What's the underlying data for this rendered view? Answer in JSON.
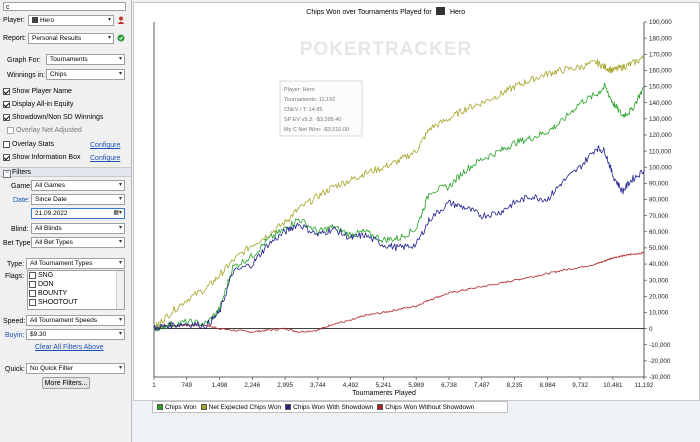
{
  "search": {
    "value": "c"
  },
  "player": {
    "label": "Player:",
    "value": "Hero"
  },
  "report": {
    "label": "Report:",
    "value": "Personal Results"
  },
  "graph_for": {
    "label": "Graph For:",
    "value": "Tournaments"
  },
  "winnings_in": {
    "label": "Winnings in:",
    "value": "Chips"
  },
  "options": [
    {
      "label": "Show Player Name",
      "checked": true
    },
    {
      "label": "Display All-in Equity",
      "checked": true
    },
    {
      "label": "Showdown/Non SD Winnings",
      "checked": true
    },
    {
      "label": "Overlay Net Adjusted",
      "checked": false
    }
  ],
  "overlay_stats": {
    "label": "Overlay Stats",
    "link": "Configure"
  },
  "show_info_box": {
    "label": "Show Information Box",
    "link": "Configure"
  },
  "filters": {
    "header": "Filters",
    "game": {
      "label": "Game:",
      "value": "All Games"
    },
    "date": {
      "label": "Date:",
      "value": "Since Date",
      "date_value": "21.09.2022"
    },
    "blind": {
      "label": "Blind:",
      "value": "All Blinds"
    },
    "bet_type": {
      "label": "Bet Type:",
      "value": "All Bet Types"
    },
    "type": {
      "label": "Type:",
      "value": "All Tournament Types"
    },
    "flags": {
      "label": "Flags:",
      "items": [
        "SNG",
        "DON",
        "BOUNTY",
        "SHOOTOUT"
      ]
    },
    "speed": {
      "label": "Speed:",
      "value": "All Tournament Speeds"
    },
    "buyin": {
      "label": "Buyin:",
      "value": "$9.30"
    },
    "clear_all": "Clear All Filters Above"
  },
  "quick": {
    "label": "Quick:",
    "value": "No Quick Filter"
  },
  "more_filters": "More Filters...",
  "chart_title": {
    "prefix": "Chips Won over Tournaments Played for",
    "player": "Hero"
  },
  "watermark": "POKERTRACKER",
  "info_box": [
    "Player: Hero",
    "Tournaments: 11,192",
    "ChEV / T: 14.95",
    "SP EV v9.3: -$3,395.40",
    "My C Net Won: -$3,510.00"
  ],
  "colors": {
    "chips_won": "#27a327",
    "net_expected": "#a6a62a",
    "showdown": "#22228f",
    "without_showdown": "#b02222"
  },
  "chart_data": {
    "type": "line",
    "title": "Chips Won over Tournaments Played for Hero",
    "xlabel": "Tournaments Played",
    "ylabel": "",
    "x_ticks": [
      "1",
      "749",
      "1,498",
      "2,246",
      "2,995",
      "3,744",
      "4,492",
      "5,241",
      "5,989",
      "6,738",
      "7,487",
      "8,235",
      "8,984",
      "9,732",
      "10,481",
      "11,192"
    ],
    "x_tick_values": [
      1,
      749,
      1498,
      2246,
      2995,
      3744,
      4492,
      5241,
      5989,
      6738,
      7487,
      8235,
      8984,
      9732,
      10481,
      11192
    ],
    "y_ticks": [
      "-30,000",
      "-20,000",
      "-10,000",
      "0",
      "10,000",
      "20,000",
      "30,000",
      "40,000",
      "50,000",
      "60,000",
      "70,000",
      "80,000",
      "90,000",
      "100,000",
      "110,000",
      "120,000",
      "130,000",
      "140,000",
      "150,000",
      "160,000",
      "170,000",
      "180,000",
      "190,000"
    ],
    "xlim": [
      1,
      11192
    ],
    "ylim": [
      -30000,
      190000
    ],
    "grid": false,
    "legend_position": "bottom",
    "x": [
      1,
      300,
      749,
      1200,
      1498,
      1800,
      2246,
      2600,
      2995,
      3300,
      3744,
      4100,
      4492,
      4800,
      5241,
      5600,
      5989,
      6300,
      6738,
      7100,
      7487,
      7900,
      8235,
      8600,
      8984,
      9300,
      9732,
      10100,
      10300,
      10481,
      10700,
      10900,
      11192
    ],
    "series": [
      {
        "name": "Chips Won",
        "values": [
          0,
          2000,
          4000,
          3000,
          12000,
          38000,
          45000,
          55000,
          62000,
          68000,
          60000,
          63000,
          58000,
          60000,
          55000,
          56000,
          62000,
          85000,
          88000,
          98000,
          105000,
          110000,
          115000,
          118000,
          122000,
          128000,
          140000,
          145000,
          150000,
          140000,
          132000,
          135000,
          150000
        ]
      },
      {
        "name": "Net Expected Chips Won",
        "values": [
          0,
          8000,
          18000,
          25000,
          33000,
          42000,
          52000,
          58000,
          66000,
          74000,
          82000,
          88000,
          92000,
          96000,
          100000,
          104000,
          110000,
          124000,
          130000,
          136000,
          140000,
          145000,
          150000,
          154000,
          158000,
          160000,
          162000,
          165000,
          162000,
          160000,
          162000,
          164000,
          168000
        ]
      },
      {
        "name": "Chips Won With Showdown",
        "values": [
          0,
          2000,
          3000,
          2000,
          10000,
          35000,
          40000,
          52000,
          60000,
          65000,
          58000,
          62000,
          56000,
          58000,
          52000,
          50000,
          52000,
          68000,
          78000,
          75000,
          70000,
          72000,
          78000,
          82000,
          80000,
          90000,
          100000,
          112000,
          110000,
          95000,
          85000,
          92000,
          98000
        ]
      },
      {
        "name": "Chips Won Without Showdown",
        "values": [
          0,
          2000,
          2000,
          2000,
          0,
          -1000,
          -2000,
          -1000,
          0,
          -2000,
          -1000,
          3000,
          5000,
          8000,
          10000,
          12000,
          14000,
          18000,
          22000,
          24000,
          26000,
          28000,
          30000,
          32000,
          34000,
          36000,
          38000,
          40000,
          42000,
          44000,
          45000,
          46000,
          47000
        ]
      }
    ]
  }
}
